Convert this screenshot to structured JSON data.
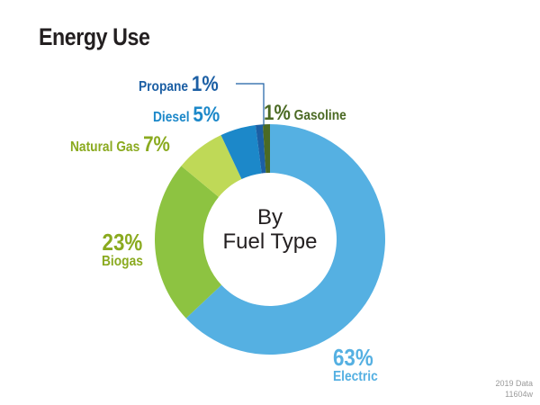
{
  "title": "Energy Use",
  "center_label": {
    "line1": "By",
    "line2": "Fuel Type"
  },
  "footer": {
    "line1": "2019 Data",
    "line2": "11604w"
  },
  "labels": {
    "propane": {
      "name": "Propane",
      "pct": "1%",
      "color": "#1c5fa4"
    },
    "diesel": {
      "name": "Diesel",
      "pct": "5%",
      "color": "#1c88c9"
    },
    "natural_gas": {
      "name": "Natural Gas",
      "pct": "7%",
      "color": "#8aaa1f"
    },
    "biogas": {
      "name": "Biogas",
      "pct": "23%",
      "color": "#8aaa1f"
    },
    "gasoline": {
      "name": "Gasoline",
      "pct": "1%",
      "color": "#4b6a24"
    },
    "electric": {
      "name": "Electric",
      "pct": "63%",
      "color": "#55b0e2"
    }
  },
  "chart_data": {
    "type": "pie",
    "title": "Energy Use",
    "subtitle": "By Fuel Type",
    "donut": true,
    "categories": [
      "Electric",
      "Biogas",
      "Natural Gas",
      "Diesel",
      "Propane",
      "Gasoline"
    ],
    "values": [
      63,
      23,
      7,
      5,
      1,
      1
    ],
    "unit": "%",
    "colors": [
      "#55b0e2",
      "#8dc341",
      "#bfd957",
      "#1c88c9",
      "#1c5fa4",
      "#4b6a24"
    ],
    "annotations": [
      "2019 Data",
      "11604w"
    ],
    "start_angle_deg": 0,
    "direction": "clockwise"
  }
}
